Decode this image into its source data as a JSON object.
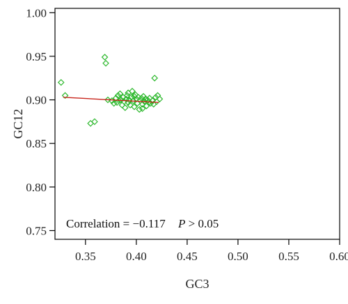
{
  "chart_data": {
    "type": "scatter",
    "xlabel": "GC3",
    "ylabel": "GC12",
    "xlim": [
      0.32,
      0.6
    ],
    "ylim": [
      0.74,
      1.005
    ],
    "xticks": [
      "0.35",
      "0.40",
      "0.45",
      "0.50",
      "0.55",
      "0.60"
    ],
    "yticks": [
      "0.75",
      "0.80",
      "0.85",
      "0.90",
      "0.95",
      "1.00"
    ],
    "grid": false,
    "marker": "diamond",
    "colors": {
      "points": "#2db82d",
      "fit_line": "#c8241b",
      "axis": "#000000"
    },
    "fit_line": {
      "x": [
        0.328,
        0.422
      ],
      "y": [
        0.903,
        0.897
      ]
    },
    "annotation": {
      "correlation_text": "Correlation = −0.117",
      "p_label": "P",
      "p_text": " > 0.05"
    },
    "points": [
      {
        "x": 0.326,
        "y": 0.92
      },
      {
        "x": 0.33,
        "y": 0.905
      },
      {
        "x": 0.355,
        "y": 0.873
      },
      {
        "x": 0.359,
        "y": 0.875
      },
      {
        "x": 0.369,
        "y": 0.949
      },
      {
        "x": 0.37,
        "y": 0.942
      },
      {
        "x": 0.372,
        "y": 0.9
      },
      {
        "x": 0.376,
        "y": 0.899
      },
      {
        "x": 0.38,
        "y": 0.902
      },
      {
        "x": 0.381,
        "y": 0.897
      },
      {
        "x": 0.382,
        "y": 0.905
      },
      {
        "x": 0.384,
        "y": 0.907
      },
      {
        "x": 0.385,
        "y": 0.9
      },
      {
        "x": 0.386,
        "y": 0.894
      },
      {
        "x": 0.387,
        "y": 0.903
      },
      {
        "x": 0.388,
        "y": 0.898
      },
      {
        "x": 0.389,
        "y": 0.891
      },
      {
        "x": 0.39,
        "y": 0.901
      },
      {
        "x": 0.391,
        "y": 0.905
      },
      {
        "x": 0.392,
        "y": 0.897
      },
      {
        "x": 0.393,
        "y": 0.9
      },
      {
        "x": 0.394,
        "y": 0.894
      },
      {
        "x": 0.395,
        "y": 0.903
      },
      {
        "x": 0.396,
        "y": 0.91
      },
      {
        "x": 0.397,
        "y": 0.899
      },
      {
        "x": 0.398,
        "y": 0.892
      },
      {
        "x": 0.399,
        "y": 0.906
      },
      {
        "x": 0.4,
        "y": 0.901
      },
      {
        "x": 0.401,
        "y": 0.896
      },
      {
        "x": 0.402,
        "y": 0.903
      },
      {
        "x": 0.403,
        "y": 0.889
      },
      {
        "x": 0.404,
        "y": 0.899
      },
      {
        "x": 0.405,
        "y": 0.902
      },
      {
        "x": 0.406,
        "y": 0.895
      },
      {
        "x": 0.407,
        "y": 0.904
      },
      {
        "x": 0.408,
        "y": 0.898
      },
      {
        "x": 0.409,
        "y": 0.901
      },
      {
        "x": 0.41,
        "y": 0.893
      },
      {
        "x": 0.411,
        "y": 0.9
      },
      {
        "x": 0.412,
        "y": 0.897
      },
      {
        "x": 0.413,
        "y": 0.902
      },
      {
        "x": 0.414,
        "y": 0.896
      },
      {
        "x": 0.416,
        "y": 0.899
      },
      {
        "x": 0.417,
        "y": 0.895
      },
      {
        "x": 0.418,
        "y": 0.925
      },
      {
        "x": 0.419,
        "y": 0.903
      },
      {
        "x": 0.42,
        "y": 0.898
      },
      {
        "x": 0.421,
        "y": 0.905
      },
      {
        "x": 0.423,
        "y": 0.901
      },
      {
        "x": 0.378,
        "y": 0.896
      },
      {
        "x": 0.383,
        "y": 0.899
      },
      {
        "x": 0.392,
        "y": 0.908
      },
      {
        "x": 0.398,
        "y": 0.904
      },
      {
        "x": 0.406,
        "y": 0.89
      }
    ]
  }
}
